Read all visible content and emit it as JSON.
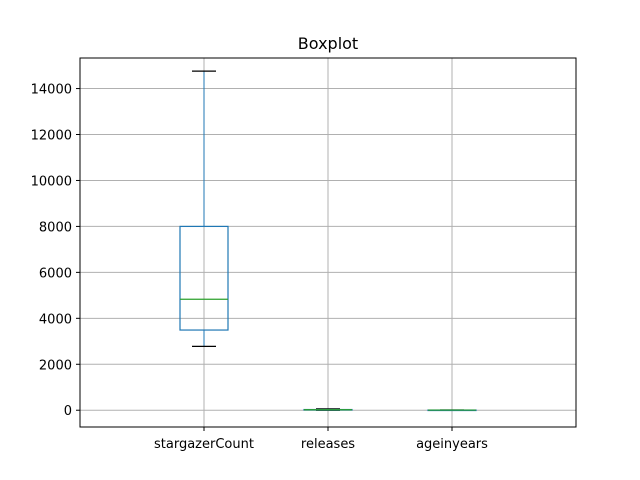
{
  "chart_data": {
    "type": "boxplot",
    "title": "Boxplot",
    "xlabel": "",
    "ylabel": "",
    "categories": [
      "stargazerCount",
      "releases",
      "ageinyears"
    ],
    "boxes": [
      {
        "whisker_low": 2780,
        "q1": 3490,
        "median": 4830,
        "q3": 8000,
        "whisker_high": 14760
      },
      {
        "whisker_low": 0,
        "q1": 10,
        "median": 20,
        "q3": 30,
        "whisker_high": 60
      },
      {
        "whisker_low": 2,
        "q1": 5,
        "median": 7,
        "q3": 9,
        "whisker_high": 12
      }
    ],
    "yticks": [
      0,
      2000,
      4000,
      6000,
      8000,
      10000,
      12000,
      14000
    ],
    "ylim": [
      -730,
      15330
    ],
    "grid": true,
    "colors": {
      "box": "#1f77b4",
      "median": "#2ca02c",
      "cap": "#000000"
    }
  }
}
